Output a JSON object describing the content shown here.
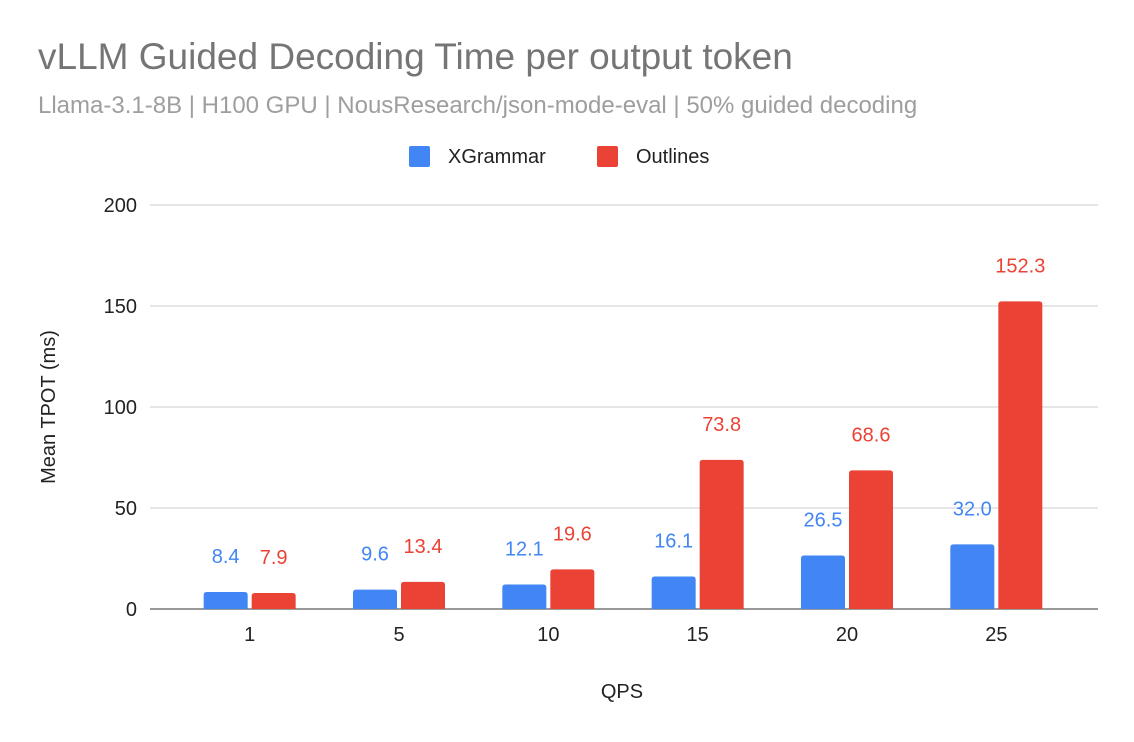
{
  "chart_data": {
    "type": "bar",
    "title": "vLLM Guided Decoding Time per output token",
    "subtitle": "Llama-3.1-8B | H100 GPU | NousResearch/json-mode-eval | 50% guided decoding",
    "xlabel": "QPS",
    "ylabel": "Mean TPOT (ms)",
    "categories": [
      "1",
      "5",
      "10",
      "15",
      "20",
      "25"
    ],
    "ylim": [
      0,
      200
    ],
    "yticks": [
      0,
      50,
      100,
      150,
      200
    ],
    "grid": true,
    "legend_position": "top",
    "series": [
      {
        "name": "XGrammar",
        "color": "#4285F4",
        "values": [
          8.4,
          9.6,
          12.1,
          16.1,
          26.5,
          32.0
        ],
        "labels": [
          "8.4",
          "9.6",
          "12.1",
          "16.1",
          "26.5",
          "32.0"
        ]
      },
      {
        "name": "Outlines",
        "color": "#EA4335",
        "values": [
          7.9,
          13.4,
          19.6,
          73.8,
          68.6,
          152.3
        ],
        "labels": [
          "7.9",
          "13.4",
          "19.6",
          "73.8",
          "68.6",
          "152.3"
        ]
      }
    ]
  }
}
